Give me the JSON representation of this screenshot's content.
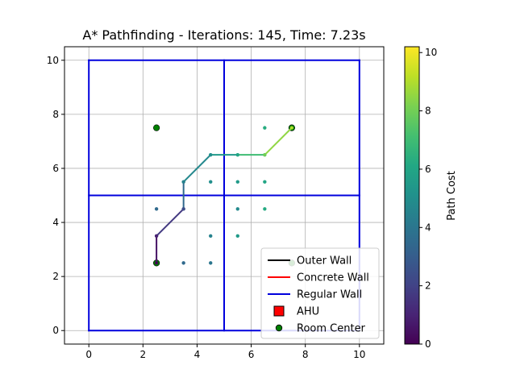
{
  "chart_data": {
    "type": "line",
    "title": "A* Pathfinding - Iterations: 145, Time: 7.23s",
    "xlabel": "",
    "ylabel": "",
    "xlim": [
      -0.9,
      10.9
    ],
    "ylim": [
      -0.5,
      10.5
    ],
    "grid": true,
    "xticks": [
      0,
      2,
      4,
      6,
      8,
      10
    ],
    "yticks": [
      0,
      2,
      4,
      6,
      8,
      10
    ],
    "walls": {
      "regular": [
        [
          [
            0,
            0
          ],
          [
            10,
            0
          ]
        ],
        [
          [
            10,
            0
          ],
          [
            10,
            10
          ]
        ],
        [
          [
            10,
            10
          ],
          [
            0,
            10
          ]
        ],
        [
          [
            0,
            10
          ],
          [
            0,
            0
          ]
        ],
        [
          [
            5,
            0
          ],
          [
            5,
            10
          ]
        ],
        [
          [
            0,
            5
          ],
          [
            10,
            5
          ]
        ]
      ],
      "color": "#0000dd"
    },
    "room_centers": [
      {
        "x": 2.5,
        "y": 7.5
      },
      {
        "x": 7.5,
        "y": 7.5
      },
      {
        "x": 2.5,
        "y": 2.5
      },
      {
        "x": 7.5,
        "y": 2.5
      }
    ],
    "explored_nodes": [
      {
        "x": 2.5,
        "y": 2.5,
        "cost": 0.0
      },
      {
        "x": 3.5,
        "y": 2.5,
        "cost": 3.5
      },
      {
        "x": 4.5,
        "y": 2.5,
        "cost": 4.0
      },
      {
        "x": 4.5,
        "y": 3.5,
        "cost": 4.5
      },
      {
        "x": 5.5,
        "y": 3.5,
        "cost": 5.5
      },
      {
        "x": 2.5,
        "y": 4.5,
        "cost": 3.5
      },
      {
        "x": 5.5,
        "y": 4.5,
        "cost": 4.8
      },
      {
        "x": 6.5,
        "y": 4.5,
        "cost": 6.2
      },
      {
        "x": 4.5,
        "y": 5.5,
        "cost": 5.0
      },
      {
        "x": 5.5,
        "y": 5.5,
        "cost": 5.5
      },
      {
        "x": 6.5,
        "y": 5.5,
        "cost": 6.0
      },
      {
        "x": 6.5,
        "y": 7.5,
        "cost": 6.3
      },
      {
        "x": 2.5,
        "y": 3.5,
        "cost": 1.0
      },
      {
        "x": 3.5,
        "y": 4.5,
        "cost": 2.2
      },
      {
        "x": 3.5,
        "y": 5.5,
        "cost": 4.5
      },
      {
        "x": 4.5,
        "y": 6.5,
        "cost": 5.0
      },
      {
        "x": 5.5,
        "y": 6.5,
        "cost": 6.0
      },
      {
        "x": 6.5,
        "y": 6.5,
        "cost": 7.2
      }
    ],
    "path": [
      {
        "x": 2.5,
        "y": 2.5,
        "cost": 0.0
      },
      {
        "x": 2.5,
        "y": 3.5,
        "cost": 1.0
      },
      {
        "x": 3.5,
        "y": 4.5,
        "cost": 2.4
      },
      {
        "x": 3.5,
        "y": 5.5,
        "cost": 4.5
      },
      {
        "x": 4.5,
        "y": 6.5,
        "cost": 5.0
      },
      {
        "x": 5.5,
        "y": 6.5,
        "cost": 6.0
      },
      {
        "x": 6.5,
        "y": 6.5,
        "cost": 8.0
      },
      {
        "x": 7.5,
        "y": 7.5,
        "cost": 9.0
      }
    ],
    "colorbar": {
      "label": "Path Cost",
      "min": 0,
      "max": 10.2,
      "ticks": [
        0,
        2,
        4,
        6,
        8,
        10
      ],
      "colormap": "viridis"
    },
    "legend": {
      "location": "bottom-right",
      "entries": [
        {
          "label": "Outer Wall",
          "kind": "line",
          "color": "#000000"
        },
        {
          "label": "Concrete Wall",
          "kind": "line",
          "color": "#ff0000"
        },
        {
          "label": "Regular Wall",
          "kind": "line",
          "color": "#0000dd"
        },
        {
          "label": "AHU",
          "kind": "square",
          "color": "#ff0000"
        },
        {
          "label": "Room Center",
          "kind": "circle",
          "color": "#008000"
        }
      ]
    }
  }
}
